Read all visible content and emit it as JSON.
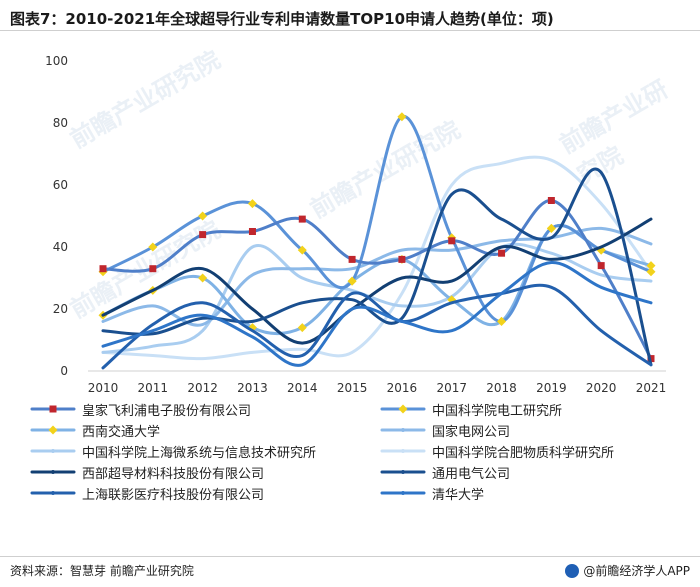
{
  "title": "图表7：2010-2021年全球超导行业专利申请数量TOP10申请人趋势(单位：项)",
  "footer": {
    "source": "资料来源：智慧芽 前瞻产业研究院",
    "brand": "@前瞻经济学人APP"
  },
  "watermark": "前瞻产业研究院",
  "chart_data": {
    "type": "line",
    "x": [
      2010,
      2011,
      2012,
      2013,
      2014,
      2015,
      2016,
      2017,
      2018,
      2019,
      2020,
      2021
    ],
    "ylim": [
      0,
      100
    ],
    "yticks": [
      0,
      20,
      40,
      60,
      80,
      100
    ],
    "grid": false,
    "smooth": true,
    "legend_position": "bottom",
    "series": [
      {
        "name": "皇家飞利浦电子股份有限公司",
        "color": "#4f7fc9",
        "marker": "square",
        "marker_color": "#c0262d",
        "values": [
          33,
          33,
          44,
          45,
          49,
          36,
          36,
          42,
          38,
          55,
          34,
          4
        ]
      },
      {
        "name": "中国科学院电工研究所",
        "color": "#5a92d8",
        "marker": "diamond",
        "marker_color": "#f2d21b",
        "values": [
          32,
          40,
          50,
          54,
          39,
          29,
          82,
          43,
          16,
          46,
          39,
          32
        ]
      },
      {
        "name": "西南交通大学",
        "color": "#7fb2e5",
        "marker": "diamond",
        "marker_color": "#f2d21b",
        "values": [
          18,
          26,
          30,
          14,
          14,
          29,
          36,
          23,
          16,
          46,
          39,
          34
        ]
      },
      {
        "name": "国家电网公司",
        "color": "#8cb9e8",
        "marker": "none",
        "values": [
          16,
          21,
          15,
          31,
          33,
          33,
          39,
          39,
          42,
          43,
          46,
          41
        ]
      },
      {
        "name": "中国科学院上海微系统与信息技术研究所",
        "color": "#a9cdf0",
        "marker": "none",
        "values": [
          6,
          8,
          13,
          40,
          30,
          26,
          21,
          24,
          40,
          38,
          31,
          29
        ]
      },
      {
        "name": "中国科学院合肥物质科学研究所",
        "color": "#c9e0f6",
        "marker": "none",
        "values": [
          6,
          5,
          4,
          6,
          7,
          6,
          25,
          60,
          67,
          68,
          54,
          32
        ]
      },
      {
        "name": "西部超导材料科技股份有限公司",
        "color": "#123f73",
        "marker": "none",
        "values": [
          18,
          26,
          33,
          20,
          9,
          20,
          30,
          29,
          40,
          36,
          40,
          49
        ]
      },
      {
        "name": "通用电气公司",
        "color": "#1a4f8f",
        "marker": "none",
        "values": [
          13,
          12,
          17,
          16,
          22,
          23,
          17,
          57,
          49,
          43,
          64,
          2
        ]
      },
      {
        "name": "上海联影医疗科技股份有限公司",
        "color": "#2360ad",
        "marker": "none",
        "values": [
          1,
          15,
          22,
          13,
          5,
          25,
          16,
          22,
          25,
          27,
          13,
          2
        ]
      },
      {
        "name": "清华大学",
        "color": "#2e75c8",
        "marker": "none",
        "values": [
          8,
          13,
          18,
          11,
          2,
          20,
          16,
          13,
          25,
          35,
          27,
          22
        ]
      }
    ]
  }
}
